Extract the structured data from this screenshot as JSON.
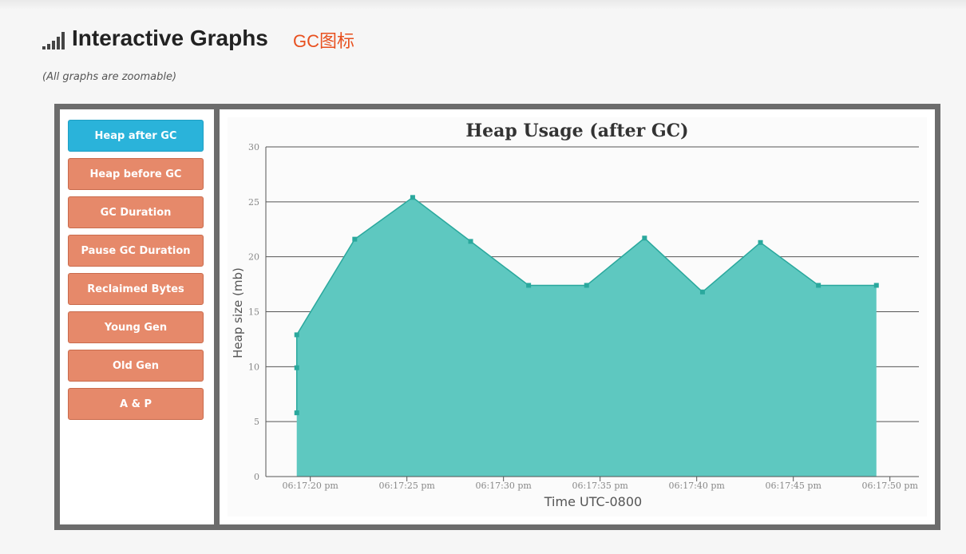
{
  "header": {
    "title": "Interactive Graphs",
    "subtitle": "GC图标",
    "note": "(All graphs are zoomable)",
    "icon": "signal-bars-icon"
  },
  "sidebar": {
    "items": [
      {
        "label": "Heap after GC",
        "active": true
      },
      {
        "label": "Heap before GC",
        "active": false
      },
      {
        "label": "GC Duration",
        "active": false
      },
      {
        "label": "Pause GC Duration",
        "active": false
      },
      {
        "label": "Reclaimed Bytes",
        "active": false
      },
      {
        "label": "Young Gen",
        "active": false
      },
      {
        "label": "Old Gen",
        "active": false
      },
      {
        "label": "A & P",
        "active": false
      }
    ]
  },
  "colors": {
    "active_button": "#2ab3da",
    "inactive_button": "#e6896a",
    "area_fill": "#5ec8c0",
    "area_line": "#2aa89d",
    "subtitle": "#e8501f"
  },
  "chart_data": {
    "type": "area",
    "title": "Heap Usage (after GC)",
    "xlabel": "Time UTC-0800",
    "ylabel": "Heap size (mb)",
    "ylim": [
      0,
      30
    ],
    "xlim": [
      "06:17:17.7",
      "06:17:51.5"
    ],
    "yticks": [
      0,
      5,
      10,
      15,
      20,
      25,
      30
    ],
    "xticks": [
      "06:17:20 pm",
      "06:17:25 pm",
      "06:17:30 pm",
      "06:17:35 pm",
      "06:17:40 pm",
      "06:17:45 pm",
      "06:17:50 pm"
    ],
    "xtick_times": [
      "06:17:20",
      "06:17:25",
      "06:17:30",
      "06:17:35",
      "06:17:40",
      "06:17:45",
      "06:17:50"
    ],
    "grid": true,
    "series": [
      {
        "x": [
          "06:17:19.3",
          "06:17:19.3",
          "06:17:19.3",
          "06:17:22.3",
          "06:17:25.3",
          "06:17:28.3",
          "06:17:31.3",
          "06:17:34.3",
          "06:17:37.3",
          "06:17:40.3",
          "06:17:43.3",
          "06:17:46.3",
          "06:17:49.3"
        ],
        "y": [
          5.8,
          9.9,
          12.9,
          21.6,
          25.4,
          21.4,
          17.4,
          17.4,
          21.7,
          16.8,
          21.3,
          17.4,
          17.4
        ]
      }
    ]
  }
}
